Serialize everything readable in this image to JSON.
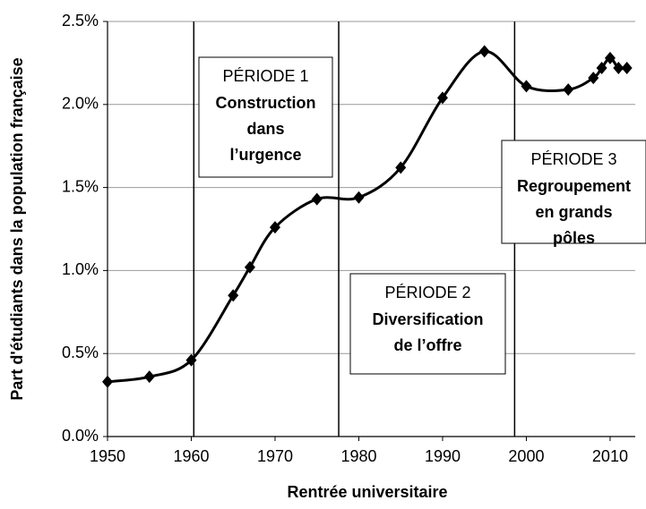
{
  "chart_data": {
    "type": "line",
    "x_label": "Rentrée universitaire",
    "y_label": "Part d'étudiants  dans la population française",
    "x": [
      1950,
      1955,
      1960,
      1965,
      1967,
      1970,
      1975,
      1980,
      1985,
      1990,
      1995,
      2000,
      2005,
      2008,
      2009,
      2010,
      2011,
      2012
    ],
    "series": [
      {
        "color": "#000000",
        "values": [
          0.33,
          0.36,
          0.46,
          0.85,
          1.02,
          1.26,
          1.43,
          1.44,
          1.62,
          2.04,
          2.32,
          2.11,
          2.09,
          2.16,
          2.22,
          2.28,
          2.22,
          2.22
        ]
      }
    ],
    "xlim": [
      1950,
      2013
    ],
    "xticks": [
      1950,
      1960,
      1970,
      1980,
      1990,
      2000,
      2010
    ],
    "ylim": [
      0,
      2.5
    ],
    "yticks": [
      {
        "value": 0,
        "label": "0.0%"
      },
      {
        "value": 0.5,
        "label": "0.5%"
      },
      {
        "value": 1,
        "label": "1.0%"
      },
      {
        "value": 1.5,
        "label": "1.5%"
      },
      {
        "value": 2,
        "label": "2.0%"
      },
      {
        "value": 2.5,
        "label": "2.5%"
      }
    ],
    "grid": true,
    "period_boundaries": [
      1960.3,
      1977.6,
      1998.6
    ],
    "annotations": [
      {
        "title": "PÉRIODE 1",
        "lines": [
          "Construction",
          "dans",
          "l’urgence"
        ]
      },
      {
        "title": "PÉRIODE 2",
        "lines": [
          "Diversification",
          "de l’offre"
        ]
      },
      {
        "title": "PÉRIODE 3",
        "lines": [
          "Regroupement",
          "en grands",
          "pôles"
        ]
      }
    ]
  }
}
